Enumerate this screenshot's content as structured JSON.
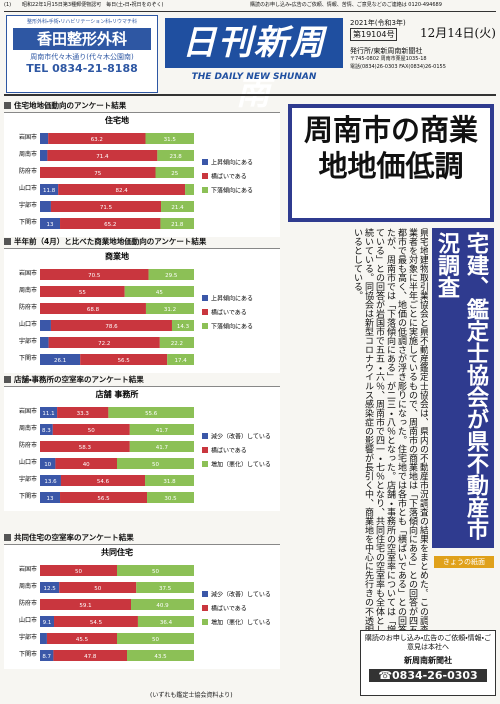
{
  "header": {
    "page_no": "(1)",
    "postal": "昭和22年1月15日第3種郵便物認可　毎日(土・日・祝日をのぞく)",
    "contact": "購読のお申し込み・広告のご依頼、情報、苦情、ご意見などのご連絡は 0120-494689",
    "ad_specialty": "整形外科・手術・リハビリテーション科・リウマチ科",
    "ad_name": "香田整形外科",
    "ad_address": "周南市代々木通り(代々木公園南)",
    "ad_tel": "TEL 0834-21-8188",
    "masthead": "日刊新周南",
    "masthead_en": "THE DAILY NEW SHUNAN",
    "year": "2021年(令和3年)",
    "issue": "第19104号",
    "date": "12月14日(火)",
    "publisher": "発行所/東新周南新聞社",
    "publisher_address": "〒745-0802 周南市栗屋1035-18",
    "publisher_tel": "電話(0834)26-0303 FAX(0834)26-0155"
  },
  "headline": "周南市の商業地地価低調",
  "subheadline": "宅建、鑑定士協会が県不動産市況調査",
  "article": "県宅地建物取引業協会と県不動産鑑定士協会は、県内の不動産市況調査の結果をまとめた。この調査は県内の会員業者を対象に半年ごとに実施しているもので、周南市の商業地は「下落傾向にある」との回答が四五％と県内主要都市で最も高く、地価の低調さが浮き彫りになった。住宅地では各市とも「横ばいである」との回答が大半を占めたが、周南市では「下落傾向にある」が二三・八％となった。店舗・事務所の空室率については「増加（悪化）している」との回答が岩国市で五五・六％、周南市で四一・七％となり、共同住宅の空室率も全体として悪化傾向が続いている。同協会は新型コロナウイルス感染症の影響が長引く中、商業地を中心に先行きの不透明感が強まっているとしている。",
  "footnote": "(いずれも鑑定士協会資料より)",
  "today": "きょうの紙面",
  "notice": {
    "text": "購読のお申し込み・広告のご依頼・情報・ご意見は本社へ",
    "company": "新周南新聞社",
    "tel": "☎0834-26-0303"
  },
  "chart_data": [
    {
      "type": "bar",
      "heading": "住宅地地価動向のアンケート結果",
      "title": "住宅地",
      "categories": [
        "岩国市",
        "周南市",
        "防府市",
        "山口市",
        "宇部市",
        "下関市"
      ],
      "series": [
        {
          "name": "上昇傾向にある",
          "color": "#3b57a8",
          "values": [
            5.3,
            4.8,
            0,
            11.8,
            7.1,
            13.0
          ]
        },
        {
          "name": "横ばいである",
          "color": "#c9363e",
          "values": [
            63.2,
            71.4,
            75.0,
            82.4,
            71.5,
            65.2
          ]
        },
        {
          "name": "下落傾向にある",
          "color": "#8cc056",
          "values": [
            31.5,
            23.8,
            25.0,
            5.8,
            21.4,
            21.8
          ]
        }
      ],
      "xlim": [
        0,
        100
      ]
    },
    {
      "type": "bar",
      "heading": "半年前（4月）と比べた商業地地価動向のアンケート結果",
      "title": "商業地",
      "categories": [
        "岩国市",
        "周南市",
        "防府市",
        "山口市",
        "宇部市",
        "下関市"
      ],
      "series": [
        {
          "name": "上昇傾向にある",
          "color": "#3b57a8",
          "values": [
            0,
            0,
            0,
            7.1,
            5.6,
            26.1
          ]
        },
        {
          "name": "横ばいである",
          "color": "#c9363e",
          "values": [
            70.5,
            55.0,
            68.8,
            78.6,
            72.2,
            56.5
          ]
        },
        {
          "name": "下落傾向にある",
          "color": "#8cc056",
          "values": [
            29.5,
            45.0,
            31.2,
            14.3,
            22.2,
            17.4
          ]
        }
      ],
      "xlim": [
        0,
        100
      ]
    },
    {
      "type": "bar",
      "heading": "店舗・事務所の空室率のアンケート結果",
      "title": "店舗 事務所",
      "categories": [
        "岩国市",
        "周南市",
        "防府市",
        "山口市",
        "宇部市",
        "下関市"
      ],
      "series": [
        {
          "name": "減少（改善）している",
          "color": "#3b57a8",
          "values": [
            11.1,
            8.3,
            0,
            10.0,
            13.6,
            13.0
          ]
        },
        {
          "name": "横ばいである",
          "color": "#c9363e",
          "values": [
            33.3,
            50.0,
            58.3,
            40.0,
            54.6,
            56.5
          ]
        },
        {
          "name": "増加（悪化）している",
          "color": "#8cc056",
          "values": [
            55.6,
            41.7,
            41.7,
            50.0,
            31.8,
            30.5
          ]
        }
      ],
      "xlim": [
        0,
        100
      ]
    },
    {
      "type": "bar",
      "heading": "共同住宅の空室率のアンケート結果",
      "title": "共同住宅",
      "categories": [
        "岩国市",
        "周南市",
        "防府市",
        "山口市",
        "宇部市",
        "下関市"
      ],
      "series": [
        {
          "name": "減少（改善）している",
          "color": "#3b57a8",
          "values": [
            0,
            12.5,
            0,
            9.1,
            4.5,
            8.7
          ]
        },
        {
          "name": "横ばいである",
          "color": "#c9363e",
          "values": [
            50.0,
            50.0,
            59.1,
            54.5,
            45.5,
            47.8
          ]
        },
        {
          "name": "増加（悪化）している",
          "color": "#8cc056",
          "values": [
            50.0,
            37.5,
            40.9,
            36.4,
            50.0,
            43.5
          ]
        }
      ],
      "xlim": [
        0,
        100
      ]
    }
  ]
}
